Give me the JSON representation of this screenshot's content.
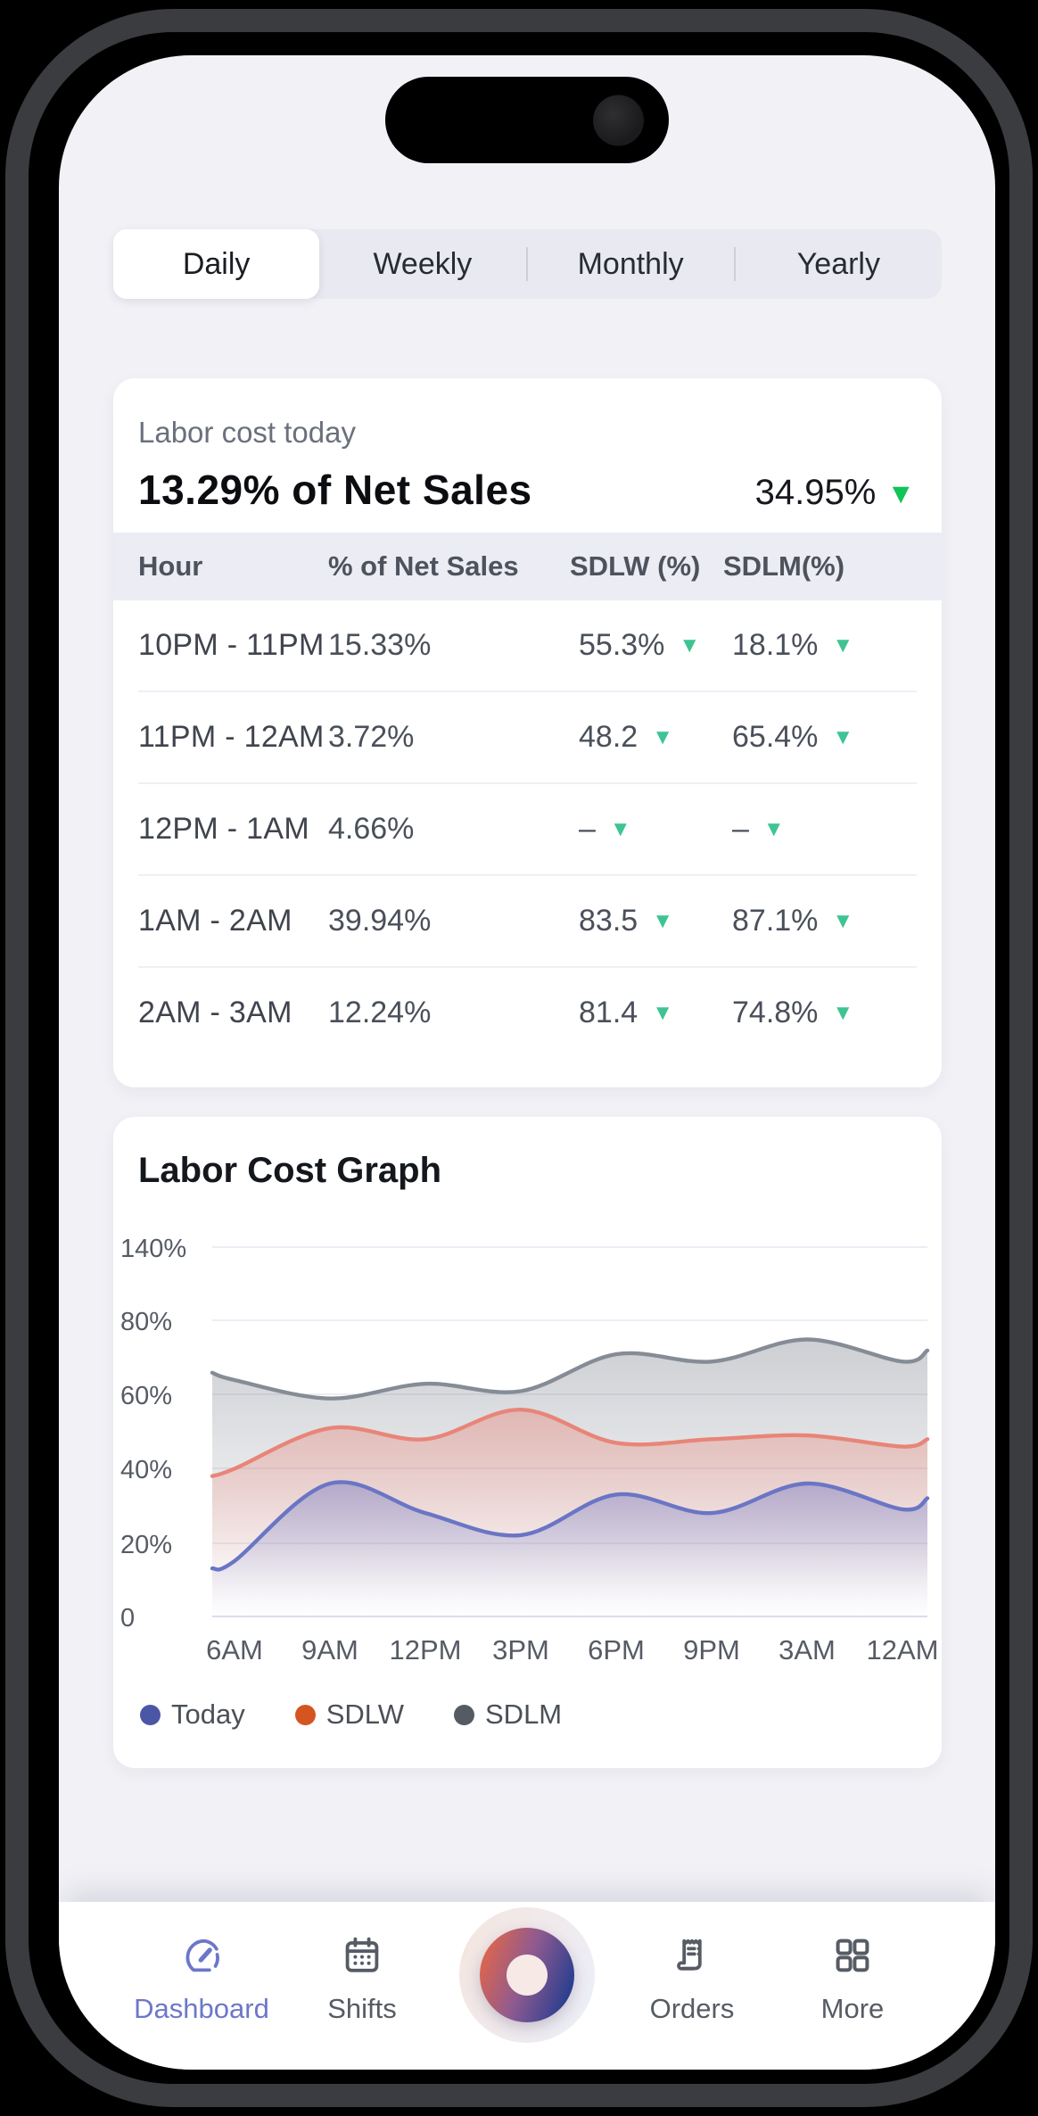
{
  "tabs": {
    "items": [
      "Daily",
      "Weekly",
      "Monthly",
      "Yearly"
    ],
    "active": "Daily"
  },
  "labor_card": {
    "subtitle": "Labor cost today",
    "headline": "13.29% of Net Sales",
    "change_value": "34.95%",
    "change_direction": "down",
    "table": {
      "columns": [
        "Hour",
        "% of Net Sales",
        "SDLW (%)",
        "SDLM(%)"
      ],
      "rows": [
        {
          "hour": "10PM - 11PM",
          "net": "15.33%",
          "sdlw": "55.3%",
          "sdlm": "18.1%"
        },
        {
          "hour": "11PM - 12AM",
          "net": "3.72%",
          "sdlw": "48.2",
          "sdlm": "65.4%"
        },
        {
          "hour": "12PM - 1AM",
          "net": "4.66%",
          "sdlw": "–",
          "sdlm": "–"
        },
        {
          "hour": "1AM - 2AM",
          "net": "39.94%",
          "sdlw": "83.5",
          "sdlm": "87.1%"
        },
        {
          "hour": "2AM - 3AM",
          "net": "12.24%",
          "sdlw": "81.4",
          "sdlm": "74.8%"
        }
      ]
    }
  },
  "graph_card": {
    "title": "Labor Cost Graph",
    "legend": [
      {
        "label": "Today",
        "color": "#4b57a5"
      },
      {
        "label": "SDLW",
        "color": "#d4551f"
      },
      {
        "label": "SDLM",
        "color": "#555a63"
      }
    ]
  },
  "chart_data": {
    "type": "area",
    "title": "Labor Cost Graph",
    "x_labels": [
      "6AM",
      "9AM",
      "12PM",
      "3PM",
      "6PM",
      "9PM",
      "3AM",
      "12AM"
    ],
    "y_tick_labels": [
      "140%",
      "80%",
      "60%",
      "40%",
      "20%",
      "0"
    ],
    "grid": true,
    "legend_position": "bottom-left",
    "note": "y gridlines are evenly spaced; each series includes one off-axis edge point before 6AM and after 12AM; values are percent of net sales",
    "series": [
      {
        "name": "SDLM",
        "line_color": "#868c96",
        "values": [
          66,
          64,
          59,
          63,
          61,
          71,
          69,
          75,
          69,
          72
        ]
      },
      {
        "name": "SDLW",
        "line_color": "#e88578",
        "values": [
          38,
          40,
          51,
          48,
          56,
          47,
          48,
          49,
          46,
          48
        ]
      },
      {
        "name": "Today",
        "line_color": "#6a75c5",
        "values": [
          13,
          15,
          36,
          28,
          22,
          33,
          28,
          36,
          29,
          32
        ]
      }
    ]
  },
  "nav": {
    "items": [
      {
        "label": "Dashboard",
        "active": true
      },
      {
        "label": "Shifts",
        "active": false
      },
      {
        "label": "Orders",
        "active": false
      },
      {
        "label": "More",
        "active": false
      }
    ]
  },
  "colors": {
    "screen_bg": "#f1f1f6",
    "positive_green": "#10c558",
    "table_arrow_green": "#3ec492",
    "nav_active": "#6d77c9",
    "nav_inactive": "#565b64"
  }
}
